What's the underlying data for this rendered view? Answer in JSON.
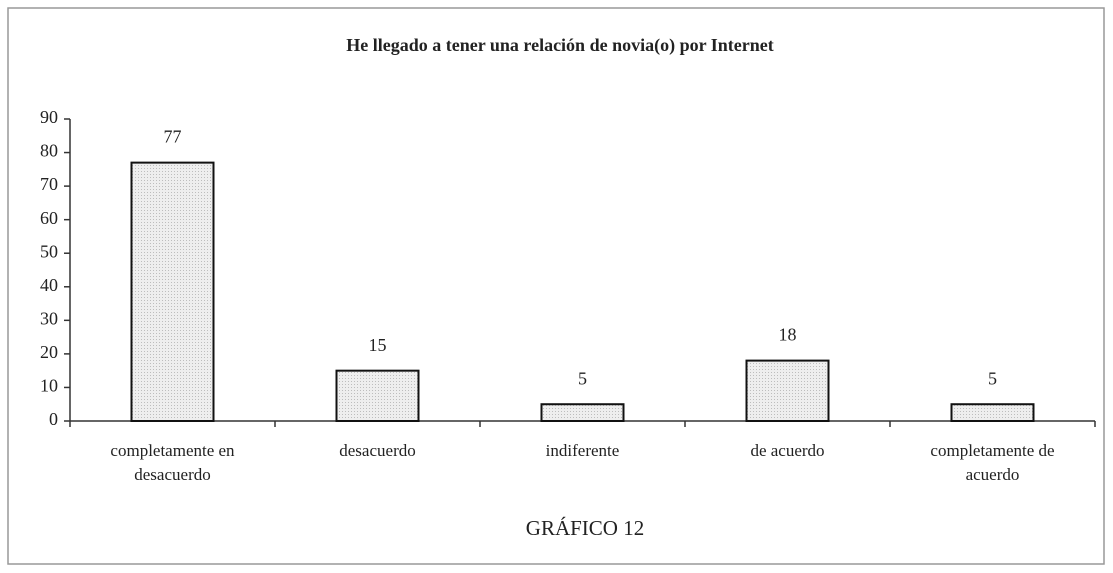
{
  "chart_data": {
    "type": "bar",
    "title": "He llegado a tener una relación de novia(o) por Internet",
    "caption": "GRÁFICO 12",
    "categories": [
      "completamente en desacuerdo",
      "desacuerdo",
      "indiferente",
      "de acuerdo",
      "completamente de acuerdo"
    ],
    "values": [
      77,
      15,
      5,
      18,
      5
    ],
    "color": "#e6e6e6",
    "ylim": [
      0,
      90
    ],
    "yticks": [
      0,
      10,
      20,
      30,
      40,
      50,
      60,
      70,
      80,
      90
    ],
    "grid": false
  }
}
